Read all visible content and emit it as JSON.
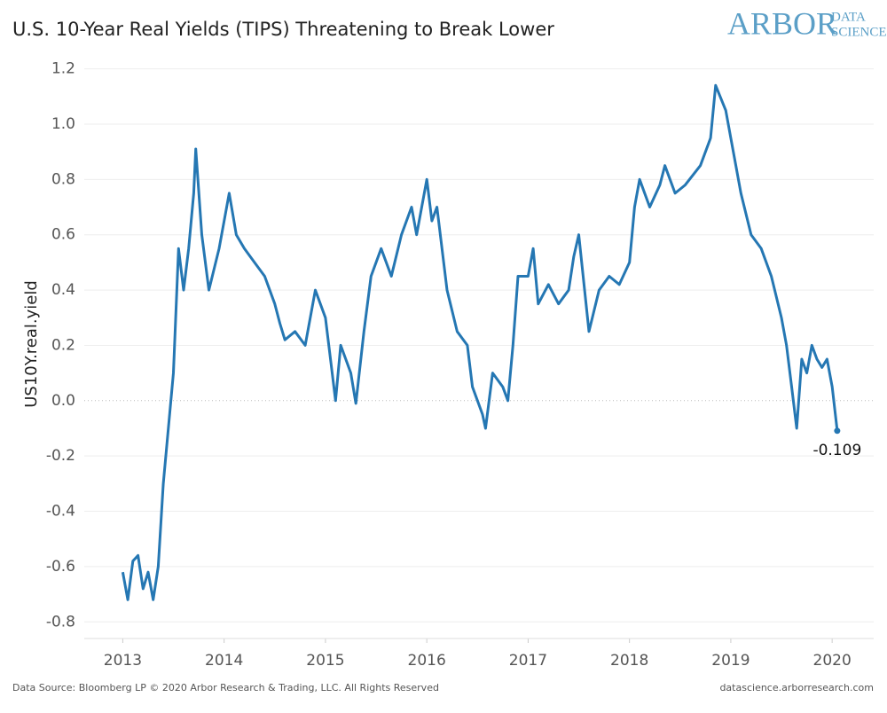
{
  "logo": {
    "brand": "ARBOR",
    "line1": "DATA",
    "line2": "SCIENCE"
  },
  "footer": {
    "source": "Data Source: Bloomberg LP © 2020 Arbor Research & Trading, LLC. All Rights Reserved",
    "site": "datascience.arborresearch.com"
  },
  "chart_data": {
    "type": "line",
    "title": "U.S. 10-Year Real Yields (TIPS) Threatening to Break Lower",
    "y_label": "US10Y.real.yield",
    "x": [
      2013.0,
      2013.05,
      2013.1,
      2013.15,
      2013.2,
      2013.25,
      2013.3,
      2013.35,
      2013.4,
      2013.45,
      2013.5,
      2013.55,
      2013.6,
      2013.65,
      2013.7,
      2013.72,
      2013.78,
      2013.85,
      2013.95,
      2014.0,
      2014.05,
      2014.12,
      2014.2,
      2014.3,
      2014.4,
      2014.5,
      2014.55,
      2014.6,
      2014.7,
      2014.8,
      2014.9,
      2015.0,
      2015.05,
      2015.1,
      2015.15,
      2015.25,
      2015.3,
      2015.38,
      2015.45,
      2015.55,
      2015.65,
      2015.75,
      2015.85,
      2015.9,
      2016.0,
      2016.05,
      2016.1,
      2016.2,
      2016.3,
      2016.4,
      2016.45,
      2016.55,
      2016.58,
      2016.65,
      2016.75,
      2016.8,
      2016.85,
      2016.9,
      2017.0,
      2017.05,
      2017.1,
      2017.2,
      2017.3,
      2017.4,
      2017.45,
      2017.5,
      2017.6,
      2017.7,
      2017.8,
      2017.9,
      2018.0,
      2018.05,
      2018.1,
      2018.2,
      2018.3,
      2018.35,
      2018.45,
      2018.55,
      2018.7,
      2018.8,
      2018.85,
      2018.95,
      2019.0,
      2019.05,
      2019.1,
      2019.2,
      2019.3,
      2019.4,
      2019.5,
      2019.55,
      2019.6,
      2019.65,
      2019.7,
      2019.75,
      2019.8,
      2019.85,
      2019.9,
      2019.95,
      2020.0,
      2020.05
    ],
    "series": [
      {
        "name": "US10Y.real.yield",
        "color": "#2577b3",
        "values": [
          -0.62,
          -0.72,
          -0.58,
          -0.56,
          -0.68,
          -0.62,
          -0.72,
          -0.6,
          -0.3,
          -0.1,
          0.1,
          0.55,
          0.4,
          0.55,
          0.75,
          0.91,
          0.6,
          0.4,
          0.55,
          0.65,
          0.75,
          0.6,
          0.55,
          0.5,
          0.45,
          0.35,
          0.28,
          0.22,
          0.25,
          0.2,
          0.4,
          0.3,
          0.15,
          0.0,
          0.2,
          0.1,
          -0.01,
          0.25,
          0.45,
          0.55,
          0.45,
          0.6,
          0.7,
          0.6,
          0.8,
          0.65,
          0.7,
          0.4,
          0.25,
          0.2,
          0.05,
          -0.05,
          -0.1,
          0.1,
          0.05,
          0.0,
          0.2,
          0.45,
          0.45,
          0.55,
          0.35,
          0.42,
          0.35,
          0.4,
          0.52,
          0.6,
          0.25,
          0.4,
          0.45,
          0.42,
          0.5,
          0.7,
          0.8,
          0.7,
          0.78,
          0.85,
          0.75,
          0.78,
          0.85,
          0.95,
          1.14,
          1.05,
          0.95,
          0.85,
          0.75,
          0.6,
          0.55,
          0.45,
          0.3,
          0.2,
          0.05,
          -0.1,
          0.15,
          0.1,
          0.2,
          0.15,
          0.12,
          0.15,
          0.05,
          -0.109
        ]
      }
    ],
    "xlim": [
      2012.62,
      2020.41
    ],
    "xticks": [
      2013,
      2014,
      2015,
      2016,
      2017,
      2018,
      2019,
      2020
    ],
    "ylim": [
      -0.86,
      1.25
    ],
    "yticks": [
      -0.8,
      -0.6,
      -0.4,
      -0.2,
      {
        "value": 0,
        "label": "0.0"
      },
      0.2,
      0.4,
      0.6,
      0.8,
      {
        "value": 1,
        "label": "1.0"
      },
      1.2
    ],
    "grid": true,
    "zero_line": true
  }
}
